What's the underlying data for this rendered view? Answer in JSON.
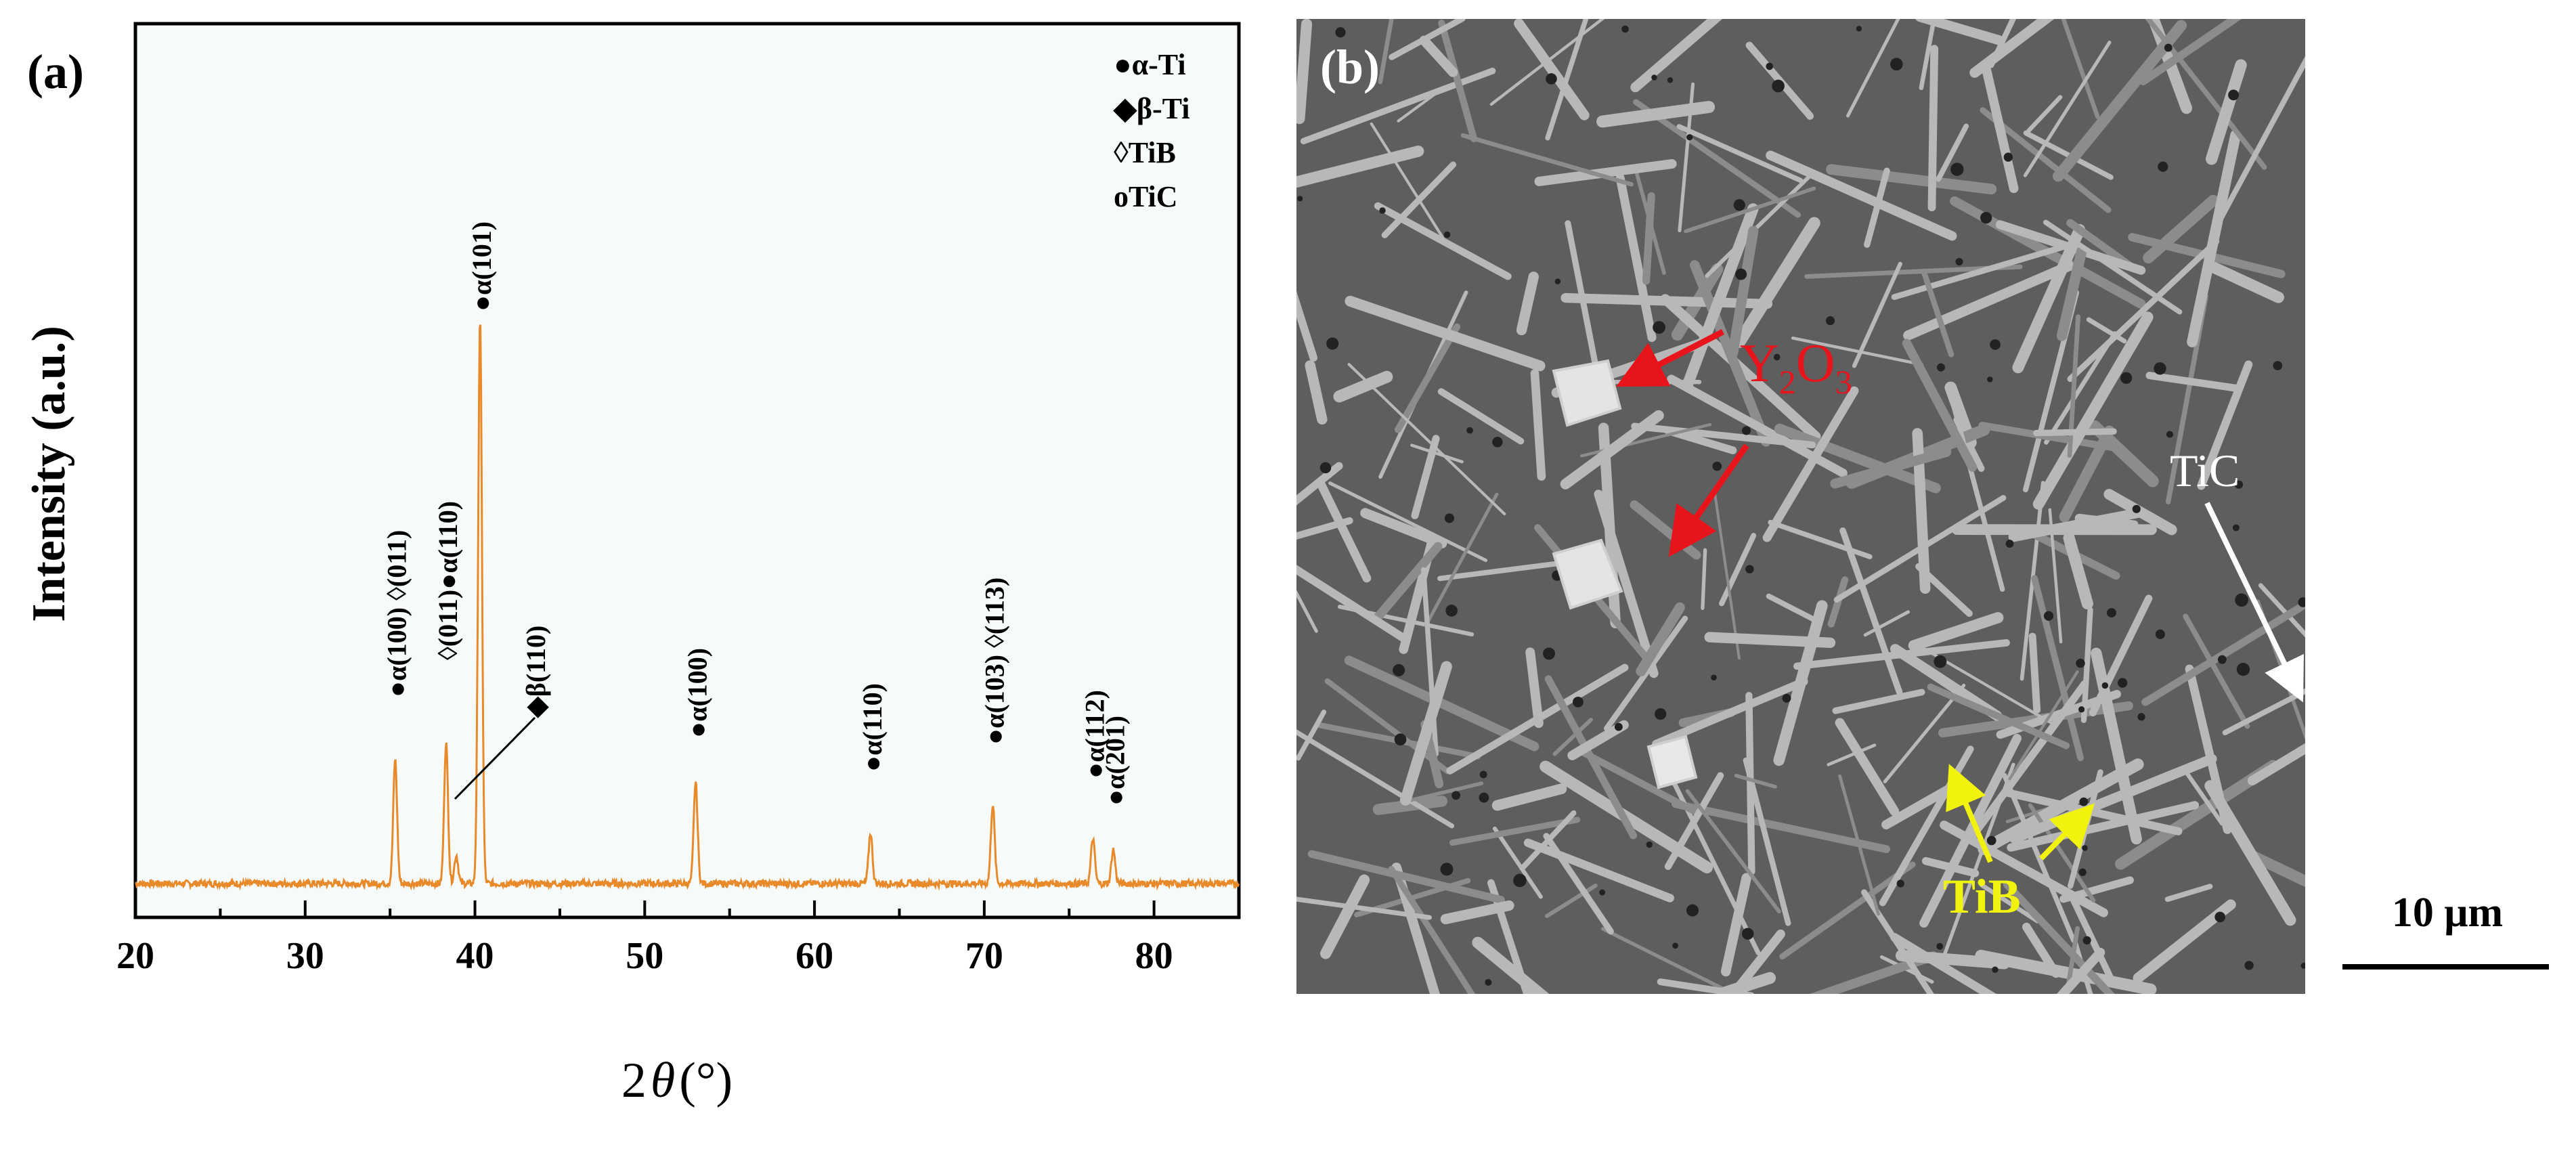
{
  "panel_a": {
    "label": "(a)",
    "chart_data": {
      "type": "line",
      "title": "",
      "xlabel_prefix": "2",
      "xlabel_symbol": "θ",
      "xlabel_suffix": "(°)",
      "ylabel": "Intensity (a.u.)",
      "xlim": [
        20,
        85
      ],
      "y_axis_values_shown": false,
      "x_ticks": [
        20,
        30,
        40,
        50,
        60,
        70,
        80
      ],
      "x_ticks_labels": [
        "20",
        "30",
        "40",
        "50",
        "60",
        "70",
        "80"
      ],
      "baseline": 0,
      "series": [
        {
          "color": "#e8892a",
          "peaks": [
            {
              "x": 35.3,
              "height": 0.22
            },
            {
              "x": 38.3,
              "height": 0.25
            },
            {
              "x": 38.9,
              "height": 0.05
            },
            {
              "x": 40.3,
              "height": 1.0
            },
            {
              "x": 53.0,
              "height": 0.18
            },
            {
              "x": 63.3,
              "height": 0.09
            },
            {
              "x": 70.5,
              "height": 0.14
            },
            {
              "x": 76.4,
              "height": 0.08
            },
            {
              "x": 77.6,
              "height": 0.06
            }
          ]
        }
      ],
      "legend": {
        "placement": "top-right",
        "items": [
          {
            "marker": "●",
            "text": "α-Ti"
          },
          {
            "marker": "◆",
            "text": "β-Ti"
          },
          {
            "marker": "◊",
            "text": "TiB"
          },
          {
            "marker": "o",
            "text": "TiC"
          }
        ]
      },
      "annotations": [
        {
          "text": "●α(100) ◊(011)",
          "x": 35.3
        },
        {
          "text": "◊(011)●α(110)",
          "x": 38.3
        },
        {
          "text": "●α(101)",
          "x": 40.3
        },
        {
          "text": "◆β(110)",
          "x": 38.9
        },
        {
          "text": "●α(100)",
          "x": 53.0
        },
        {
          "text": "●α(110)",
          "x": 63.3
        },
        {
          "text": "●α(103) ◊(113)",
          "x": 70.5
        },
        {
          "text": "●α(112)",
          "x": 76.4
        },
        {
          "text": "●α(201)",
          "x": 77.6
        }
      ],
      "colors": {
        "background": "#f6fbfa",
        "line": "#e8892a"
      }
    }
  },
  "panel_b": {
    "label": "(b)",
    "annotations": [
      {
        "text_main": "Y",
        "sub1": "2",
        "text_mid": "O",
        "sub2": "3",
        "color": "#e8141b"
      },
      {
        "text": "TiC",
        "color": "#ffffff"
      },
      {
        "text": "TiB",
        "color": "#f2f20f"
      }
    ],
    "scale_bar": "10 μm",
    "colors": {
      "matrix": "#5e5e5e",
      "phase": "#b8b8b8",
      "arrow_red": "#e8141b",
      "arrow_white": "#ffffff",
      "arrow_yellow": "#f2f20f"
    }
  }
}
